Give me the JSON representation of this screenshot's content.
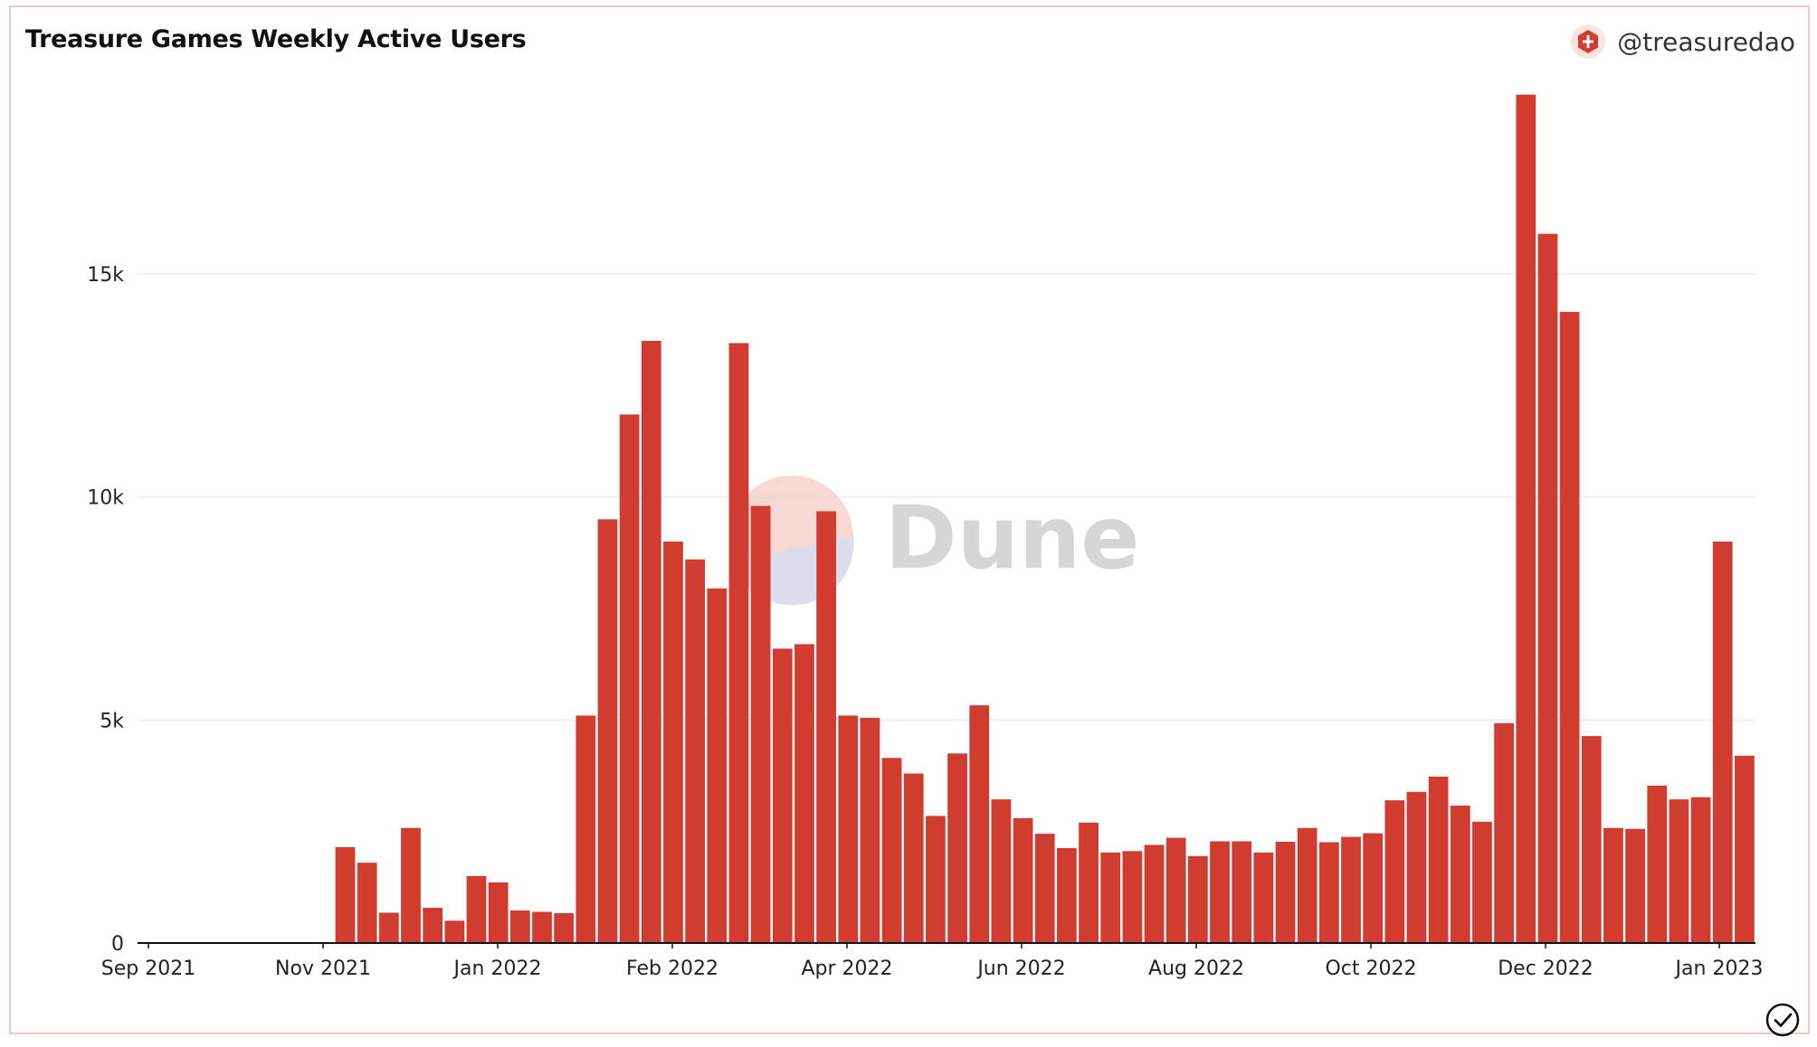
{
  "header": {
    "title": "Treasure Games Weekly Active Users",
    "handle": "@treasuredao",
    "logo_icon": "treasure-logo-icon"
  },
  "watermark": {
    "text": "Dune"
  },
  "footer": {
    "status_icon": "check-circle-icon"
  },
  "colors": {
    "bar": "#d13c31",
    "grid": "#ececec",
    "axis": "#111111",
    "border": "#f2c7c2"
  },
  "chart_data": {
    "type": "bar",
    "title": "Treasure Games Weekly Active Users",
    "xlabel": "",
    "ylabel": "",
    "ylim": [
      0,
      19500
    ],
    "grid": true,
    "legend": "none",
    "x_ticks": [
      "Sep 2021",
      "Nov 2021",
      "Jan 2022",
      "Feb 2022",
      "Apr 2022",
      "Jun 2022",
      "Aug 2022",
      "Oct 2022",
      "Dec 2022",
      "Jan 2023"
    ],
    "y_ticks": [
      {
        "value": 0,
        "label": "0"
      },
      {
        "value": 5000,
        "label": "5k"
      },
      {
        "value": 10000,
        "label": "10k"
      },
      {
        "value": 15000,
        "label": "15k"
      }
    ],
    "series": [
      {
        "values": [
          0,
          0,
          0,
          0,
          0,
          0,
          0,
          0,
          0,
          2150,
          1800,
          680,
          2580,
          790,
          500,
          1500,
          1360,
          730,
          700,
          670,
          5100,
          9500,
          11850,
          13500,
          9000,
          8600,
          7950,
          13450,
          9800,
          6600,
          6700,
          9680,
          5100,
          5050,
          4150,
          3800,
          2850,
          4250,
          5330,
          3220,
          2800,
          2450,
          2130,
          2700,
          2030,
          2060,
          2200,
          2360,
          1950,
          2280,
          2280,
          2030,
          2270,
          2580,
          2260,
          2380,
          2460,
          3200,
          3390,
          3730,
          3080,
          2720,
          4930,
          19020,
          15900,
          14150,
          4640,
          2580,
          2560,
          3530,
          3220,
          3270,
          9000,
          4200
        ]
      }
    ]
  }
}
